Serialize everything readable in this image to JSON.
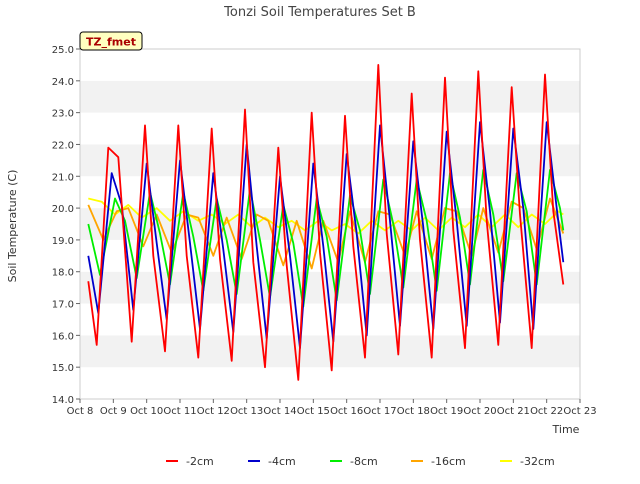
{
  "chart_data": {
    "type": "line",
    "title": "Tonzi Soil Temperatures Set B",
    "xlabel": "Time",
    "ylabel": "Soil Temperature (C)",
    "ylim": [
      14.0,
      25.0
    ],
    "xlim": [
      8,
      23
    ],
    "yticks": [
      "14.0",
      "15.0",
      "16.0",
      "17.0",
      "18.0",
      "19.0",
      "20.0",
      "21.0",
      "22.0",
      "23.0",
      "24.0",
      "25.0"
    ],
    "xticks": [
      "Oct 8",
      "Oct 9",
      "Oct 10",
      "Oct 11",
      "Oct 12",
      "Oct 13",
      "Oct 14",
      "Oct 15",
      "Oct 16",
      "Oct 17",
      "Oct 18",
      "Oct 19",
      "Oct 20",
      "Oct 21",
      "Oct 22",
      "Oct 23"
    ],
    "grid": "alternating horizontal bands",
    "legend_position": "bottom",
    "annotation": "TZ_fmet",
    "colors": {
      "-2cm": "#ff0000",
      "-4cm": "#0000cc",
      "-8cm": "#00ee00",
      "-16cm": "#ffa500",
      "-32cm": "#ffff00"
    },
    "series": [
      {
        "name": "-2cm",
        "x": [
          8.25,
          8.5,
          8.85,
          9.15,
          9.55,
          9.95,
          10.2,
          10.55,
          10.95,
          11.2,
          11.55,
          11.95,
          12.2,
          12.55,
          12.95,
          13.2,
          13.55,
          13.95,
          14.2,
          14.55,
          14.95,
          15.2,
          15.55,
          15.95,
          16.2,
          16.55,
          16.95,
          17.2,
          17.55,
          17.95,
          18.2,
          18.55,
          18.95,
          19.2,
          19.55,
          19.95,
          20.2,
          20.55,
          20.95,
          21.2,
          21.55,
          21.95,
          22.2,
          22.5
        ],
        "values": [
          17.7,
          15.7,
          21.9,
          21.6,
          15.8,
          22.6,
          18.5,
          15.5,
          22.6,
          18.5,
          15.3,
          22.5,
          18.4,
          15.2,
          23.1,
          18.3,
          15.0,
          21.9,
          18.2,
          14.6,
          23.0,
          18.6,
          14.9,
          22.9,
          18.8,
          15.3,
          24.5,
          19.2,
          15.4,
          23.6,
          19.0,
          15.3,
          24.1,
          19.3,
          15.6,
          24.3,
          19.6,
          15.7,
          23.8,
          19.8,
          15.6,
          24.2,
          19.9,
          17.6
        ]
      },
      {
        "name": "-4cm",
        "x": [
          8.25,
          8.55,
          8.95,
          9.25,
          9.6,
          10.0,
          10.3,
          10.6,
          11.0,
          11.3,
          11.6,
          12.0,
          12.3,
          12.6,
          13.0,
          13.3,
          13.6,
          14.0,
          14.3,
          14.6,
          15.0,
          15.3,
          15.6,
          16.0,
          16.3,
          16.6,
          17.0,
          17.3,
          17.6,
          18.0,
          18.3,
          18.6,
          19.0,
          19.3,
          19.6,
          20.0,
          20.3,
          20.6,
          21.0,
          21.3,
          21.6,
          22.0,
          22.3,
          22.5
        ],
        "values": [
          18.5,
          16.7,
          21.1,
          20.1,
          16.8,
          21.4,
          18.9,
          16.5,
          21.5,
          18.9,
          16.2,
          21.1,
          18.7,
          16.1,
          22.0,
          18.8,
          15.9,
          21.0,
          18.5,
          15.6,
          21.4,
          18.8,
          15.8,
          21.7,
          19.2,
          16.0,
          22.6,
          19.6,
          16.3,
          22.1,
          19.4,
          16.2,
          22.4,
          19.6,
          16.3,
          22.7,
          19.9,
          16.4,
          22.5,
          20.0,
          16.2,
          22.7,
          20.0,
          18.3
        ]
      },
      {
        "name": "-8cm",
        "x": [
          8.25,
          8.6,
          9.05,
          9.35,
          9.7,
          10.1,
          10.4,
          10.7,
          11.1,
          11.4,
          11.7,
          12.1,
          12.4,
          12.7,
          13.1,
          13.4,
          13.7,
          14.1,
          14.4,
          14.7,
          15.1,
          15.4,
          15.7,
          16.1,
          16.4,
          16.7,
          17.1,
          17.4,
          17.7,
          18.1,
          18.4,
          18.7,
          19.1,
          19.4,
          19.7,
          20.1,
          20.4,
          20.7,
          21.1,
          21.4,
          21.7,
          22.1,
          22.4,
          22.5
        ],
        "values": [
          19.5,
          17.9,
          20.3,
          19.6,
          17.8,
          20.5,
          19.2,
          17.6,
          20.5,
          19.1,
          17.4,
          20.3,
          19.0,
          17.3,
          20.6,
          19.0,
          17.2,
          20.1,
          18.9,
          16.9,
          20.3,
          19.1,
          17.1,
          20.4,
          19.3,
          17.3,
          20.9,
          19.5,
          17.5,
          20.9,
          19.6,
          17.4,
          21.1,
          19.7,
          17.6,
          21.2,
          19.8,
          17.7,
          21.1,
          19.9,
          17.6,
          21.2,
          20.0,
          19.3
        ]
      },
      {
        "name": "-16cm",
        "x": [
          8.25,
          8.7,
          9.1,
          9.45,
          9.9,
          10.3,
          10.75,
          11.2,
          11.55,
          12.0,
          12.4,
          12.85,
          13.3,
          13.65,
          14.1,
          14.5,
          14.95,
          15.3,
          15.75,
          16.1,
          16.55,
          16.95,
          17.3,
          17.75,
          18.1,
          18.55,
          18.95,
          19.3,
          19.75,
          20.1,
          20.55,
          20.95,
          21.3,
          21.7,
          22.1,
          22.5
        ],
        "values": [
          20.1,
          19.0,
          19.9,
          20.0,
          18.8,
          19.8,
          18.6,
          19.8,
          19.7,
          18.5,
          19.7,
          18.4,
          19.8,
          19.6,
          18.2,
          19.6,
          18.1,
          19.6,
          18.3,
          19.9,
          18.3,
          19.9,
          19.8,
          18.5,
          19.9,
          18.4,
          20.0,
          19.9,
          18.5,
          20.0,
          18.6,
          20.2,
          20.0,
          18.7,
          20.3,
          19.2
        ]
      },
      {
        "name": "-32cm",
        "x": [
          8.25,
          8.65,
          9.05,
          9.45,
          9.85,
          10.3,
          10.7,
          11.1,
          11.55,
          11.95,
          12.35,
          12.75,
          13.15,
          13.55,
          13.95,
          14.35,
          14.75,
          15.15,
          15.55,
          15.95,
          16.35,
          16.75,
          17.15,
          17.55,
          17.95,
          18.35,
          18.75,
          19.15,
          19.55,
          19.95,
          20.35,
          20.75,
          21.15,
          21.55,
          21.95,
          22.35,
          22.5
        ],
        "values": [
          20.3,
          20.2,
          19.8,
          20.1,
          19.7,
          20.0,
          19.6,
          19.9,
          19.6,
          19.8,
          19.5,
          19.8,
          19.4,
          19.7,
          19.4,
          19.6,
          19.3,
          19.6,
          19.3,
          19.5,
          19.2,
          19.6,
          19.3,
          19.6,
          19.3,
          19.7,
          19.3,
          19.7,
          19.4,
          19.8,
          19.4,
          19.8,
          19.4,
          19.8,
          19.5,
          19.9,
          19.8
        ]
      }
    ]
  }
}
